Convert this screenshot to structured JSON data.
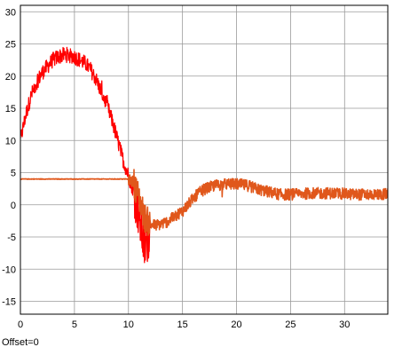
{
  "footer": {
    "offset_text": "Offset=0"
  },
  "chart_data": {
    "type": "line",
    "title": "",
    "xlabel": "",
    "ylabel": "",
    "xlim": [
      0,
      34
    ],
    "ylim": [
      -17,
      31
    ],
    "grid": true,
    "legend": "none",
    "x_ticks": [
      0,
      5,
      10,
      15,
      20,
      25,
      30
    ],
    "y_ticks": [
      -15,
      -10,
      -5,
      0,
      5,
      10,
      15,
      20,
      25,
      30
    ],
    "series": [
      {
        "color": "#ff0000",
        "noise": 1.2,
        "x": [
          0,
          0.5,
          1,
          1.5,
          2,
          2.5,
          3,
          3.5,
          4,
          4.5,
          5,
          5.5,
          6,
          6.5,
          7,
          7.5,
          8,
          8.5,
          9,
          9.5,
          10,
          10.5,
          11,
          11.5,
          12
        ],
        "y": [
          10,
          14,
          17,
          19,
          20.5,
          21.5,
          22.5,
          23,
          23.3,
          23.3,
          23,
          22.5,
          22,
          21,
          19.5,
          17.5,
          15.5,
          13,
          10,
          7,
          4.5,
          2,
          -2,
          -7,
          -4
        ]
      },
      {
        "color": "#e0571b",
        "noise": 0.9,
        "x": [
          0,
          10,
          10.5,
          11,
          11.5,
          12,
          12.5,
          13,
          13.5,
          14,
          14.5,
          15,
          15.5,
          16,
          16.5,
          17,
          18,
          19,
          20,
          21,
          22,
          23,
          24,
          25,
          26,
          27,
          28,
          29,
          30,
          31,
          32,
          33,
          34
        ],
        "y": [
          4,
          4,
          3.5,
          1,
          -2,
          -3,
          -3.2,
          -3,
          -2.7,
          -2.2,
          -1.5,
          -1,
          0,
          1,
          1.8,
          2.4,
          3,
          3.2,
          3.2,
          3,
          2.4,
          2,
          1.6,
          1.6,
          1.7,
          1.8,
          1.8,
          1.8,
          1.7,
          1.6,
          1.6,
          1.6,
          1.7
        ]
      }
    ]
  }
}
